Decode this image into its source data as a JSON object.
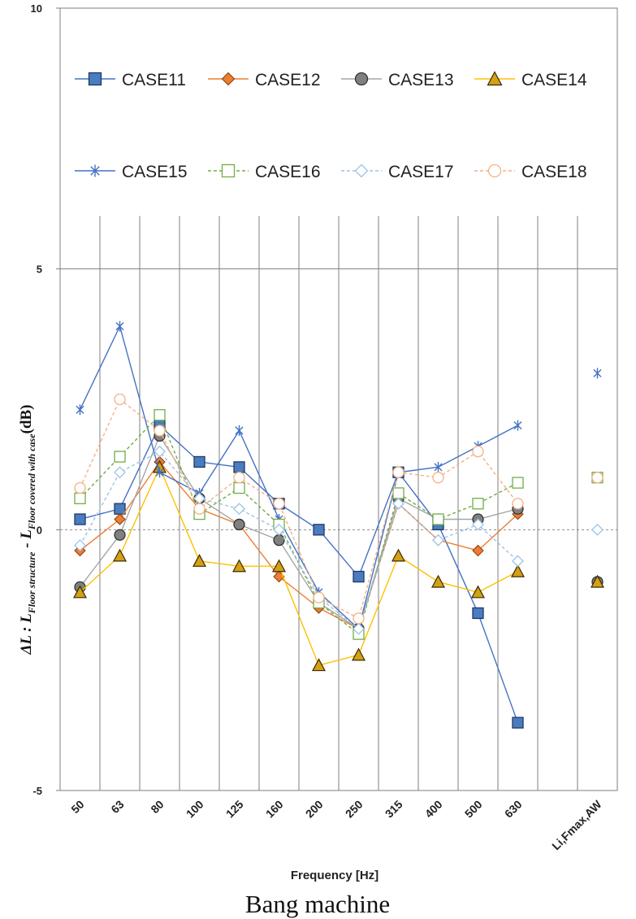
{
  "caption": "Bang machine",
  "chart_data": {
    "type": "line",
    "xlabel": "Frequency [Hz]",
    "ylabel": {
      "main": "ΔL : L",
      "sub1": "Floor structure",
      "mid": " - L",
      "sub2": "Floor covered  with case",
      "unit": "(dB)"
    },
    "ylim": [
      -5,
      10
    ],
    "yticks": [
      "-5",
      "0",
      "5",
      "10"
    ],
    "categories": [
      "50",
      "63",
      "80",
      "100",
      "125",
      "160",
      "200",
      "250",
      "315",
      "400",
      "500",
      "630",
      "",
      "Li,Fmax,AW"
    ],
    "grid": "vertical lines, horizontal lines at 5 and 10, dashed line at 0",
    "legend_position": "top, inside plot",
    "series": [
      {
        "name": "CASE11",
        "color": "#4472c4",
        "marker": "square-filled",
        "dashed": false,
        "values": [
          0.2,
          0.4,
          2.0,
          1.3,
          1.2,
          0.5,
          0.0,
          -0.9,
          1.1,
          0.1,
          -1.6,
          -3.7,
          null,
          null
        ]
      },
      {
        "name": "CASE12",
        "color": "#ed7d31",
        "marker": "diamond-filled",
        "dashed": false,
        "values": [
          -0.4,
          0.2,
          1.3,
          0.4,
          0.1,
          -0.9,
          -1.5,
          -1.9,
          0.5,
          -0.2,
          -0.4,
          0.3,
          null,
          null
        ]
      },
      {
        "name": "CASE13",
        "color": "#a5a5a5",
        "marker": "circle-filled",
        "dashed": false,
        "values": [
          -1.1,
          -0.1,
          1.8,
          0.6,
          0.1,
          -0.2,
          -1.4,
          -1.9,
          0.6,
          0.2,
          0.2,
          0.4,
          null,
          -1.0
        ]
      },
      {
        "name": "CASE14",
        "color": "#ffc000",
        "marker": "triangle-filled",
        "dashed": false,
        "values": [
          -1.2,
          -0.5,
          1.2,
          -0.6,
          -0.7,
          -0.7,
          -2.6,
          -2.4,
          -0.5,
          -1.0,
          -1.2,
          -0.8,
          null,
          -1.0
        ]
      },
      {
        "name": "CASE15",
        "color": "#4472c4",
        "marker": "asterisk",
        "dashed": false,
        "values": [
          2.3,
          3.9,
          1.1,
          0.7,
          1.9,
          0.2,
          -1.2,
          -1.9,
          1.1,
          1.2,
          1.6,
          2.0,
          null,
          3.0
        ]
      },
      {
        "name": "CASE16",
        "color": "#70ad47",
        "marker": "square-open",
        "dashed": true,
        "values": [
          0.6,
          1.4,
          2.2,
          0.3,
          0.8,
          0.1,
          -1.4,
          -2.0,
          0.7,
          0.2,
          0.5,
          0.9,
          null,
          1.0
        ]
      },
      {
        "name": "CASE17",
        "color": "#9dc3e6",
        "marker": "diamond-open",
        "dashed": true,
        "values": [
          -0.3,
          1.1,
          1.5,
          0.6,
          0.4,
          0.0,
          -1.3,
          -1.9,
          0.5,
          -0.2,
          0.1,
          -0.6,
          null,
          0.0
        ]
      },
      {
        "name": "CASE18",
        "color": "#f4b183",
        "marker": "circle-open",
        "dashed": true,
        "values": [
          0.8,
          2.5,
          1.9,
          0.4,
          1.0,
          0.5,
          -1.3,
          -1.7,
          1.1,
          1.0,
          1.5,
          0.5,
          null,
          1.0
        ]
      }
    ]
  }
}
